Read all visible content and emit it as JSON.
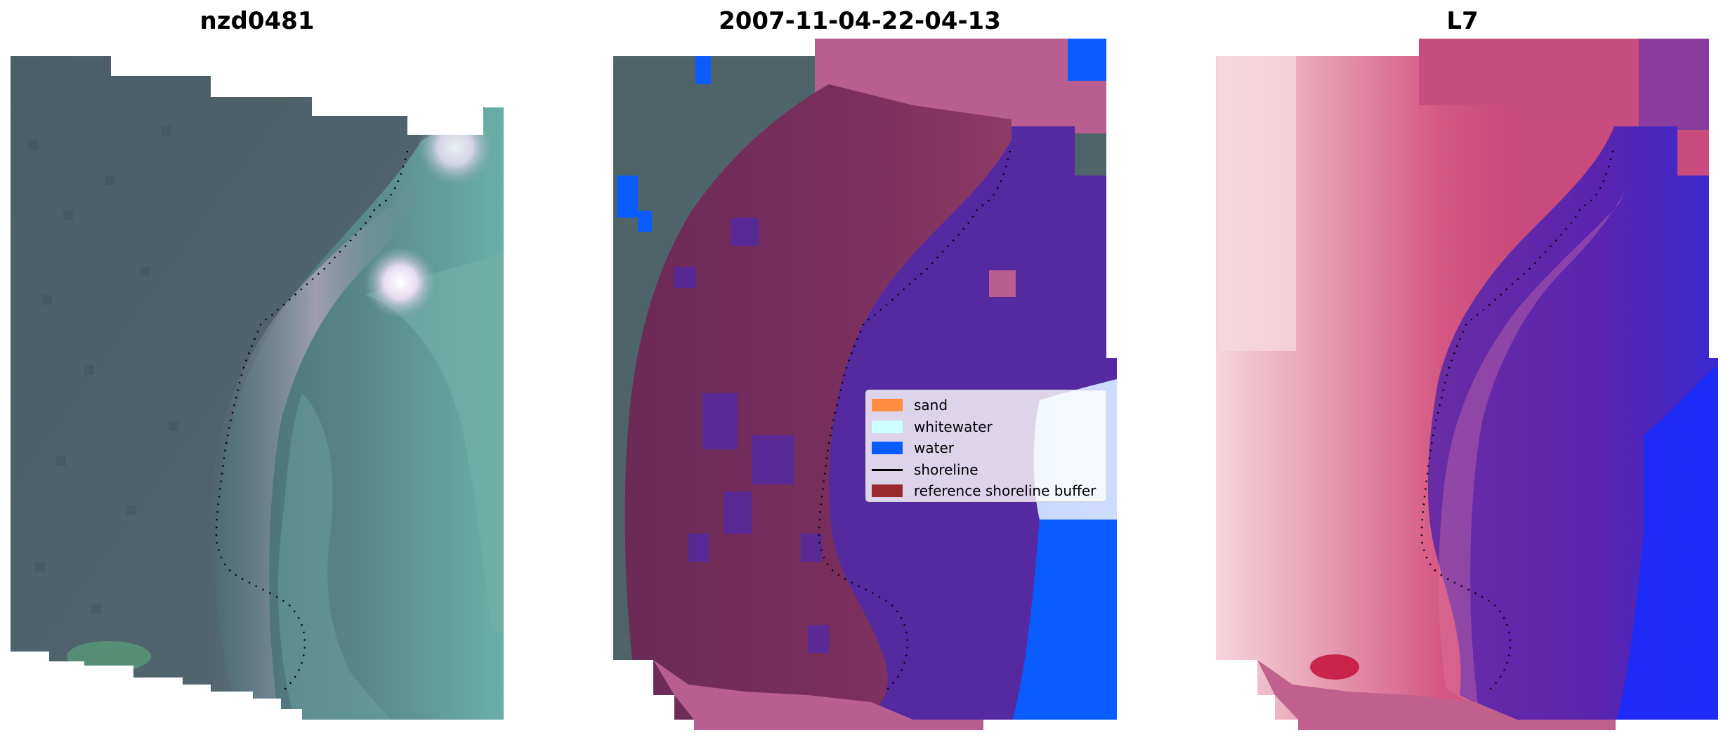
{
  "panels": [
    {
      "title": "nzd0481",
      "image": "rgb-satellite-image"
    },
    {
      "title": "2007-11-04-22-04-13",
      "image": "classified-image"
    },
    {
      "title": "L7",
      "image": "water-index-image"
    }
  ],
  "legend": {
    "items": [
      {
        "label": "sand",
        "color": "#ff8c3f",
        "kind": "patch"
      },
      {
        "label": "whitewater",
        "color": "#ccffff",
        "kind": "patch"
      },
      {
        "label": "water",
        "color": "#0a5cff",
        "kind": "patch"
      },
      {
        "label": "shoreline",
        "color": "#000000",
        "kind": "line"
      },
      {
        "label": "reference shoreline buffer",
        "color": "#9b2a2f",
        "kind": "patch"
      }
    ]
  },
  "colors": {
    "buffer_overlay": "#7a2f5e",
    "land_grey": "#4e6468",
    "water_blue": "#0a5cff",
    "purple_water": "#5529a0",
    "pink_land": "#d0507d",
    "ocean_teal": "#5e9a9a"
  }
}
